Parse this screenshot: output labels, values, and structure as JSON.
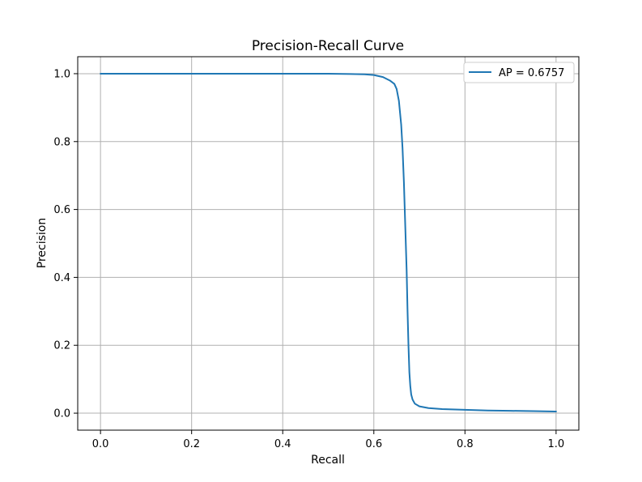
{
  "chart_data": {
    "type": "line",
    "title": "Precision-Recall Curve",
    "xlabel": "Recall",
    "ylabel": "Precision",
    "xlim": [
      -0.05,
      1.05
    ],
    "ylim": [
      -0.05,
      1.05
    ],
    "xticks": [
      0.0,
      0.2,
      0.4,
      0.6,
      0.8,
      1.0
    ],
    "yticks": [
      0.0,
      0.2,
      0.4,
      0.6,
      0.8,
      1.0
    ],
    "xtick_labels": [
      "0.0",
      "0.2",
      "0.4",
      "0.6",
      "0.8",
      "1.0"
    ],
    "ytick_labels": [
      "0.0",
      "0.2",
      "0.4",
      "0.6",
      "0.8",
      "1.0"
    ],
    "grid": true,
    "legend_position": "top-right",
    "series": [
      {
        "name": "AP = 0.6757",
        "color": "#1f77b4",
        "x": [
          0.0,
          0.1,
          0.2,
          0.3,
          0.4,
          0.5,
          0.55,
          0.58,
          0.6,
          0.62,
          0.635,
          0.645,
          0.65,
          0.655,
          0.66,
          0.663,
          0.666,
          0.669,
          0.672,
          0.674,
          0.676,
          0.678,
          0.68,
          0.682,
          0.685,
          0.69,
          0.7,
          0.72,
          0.75,
          0.8,
          0.85,
          0.9,
          0.95,
          1.0
        ],
        "y": [
          1.0,
          1.0,
          1.0,
          1.0,
          1.0,
          1.0,
          0.999,
          0.998,
          0.996,
          0.99,
          0.98,
          0.97,
          0.955,
          0.92,
          0.85,
          0.78,
          0.68,
          0.55,
          0.42,
          0.3,
          0.2,
          0.12,
          0.08,
          0.055,
          0.04,
          0.028,
          0.02,
          0.015,
          0.012,
          0.01,
          0.008,
          0.007,
          0.006,
          0.005
        ]
      }
    ]
  }
}
